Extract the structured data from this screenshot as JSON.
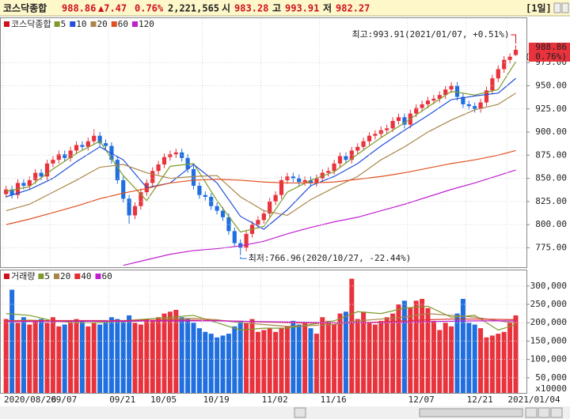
{
  "header": {
    "name": "코스닥종합",
    "price": "988.86",
    "change": "▲7.47",
    "change_pct": "0.76%",
    "volume": "2,221,565",
    "open_label": "시",
    "open": "983.28",
    "high_label": "고",
    "high": "993.91",
    "low_label": "저",
    "low": "982.27",
    "period": "[1일]"
  },
  "chart_data": [
    {
      "type": "candlestick",
      "legend_title": "코스닥종합",
      "categories": [
        "2020/08/26",
        null,
        null,
        null,
        null,
        null,
        null,
        null,
        "09/07",
        null,
        null,
        null,
        null,
        null,
        null,
        null,
        null,
        null,
        "09/21",
        null,
        null,
        null,
        null,
        null,
        null,
        "10/05",
        null,
        null,
        null,
        null,
        null,
        null,
        null,
        null,
        "10/19",
        null,
        null,
        null,
        null,
        null,
        null,
        null,
        null,
        null,
        "11/02",
        null,
        null,
        null,
        null,
        null,
        null,
        null,
        null,
        null,
        "11/16",
        null,
        null,
        null,
        null,
        null,
        null,
        null,
        null,
        null,
        null,
        null,
        null,
        null,
        null,
        "12/07",
        null,
        null,
        null,
        null,
        null,
        null,
        null,
        null,
        null,
        "12/21",
        null,
        null,
        null,
        null,
        null,
        null,
        "2021/01/04",
        null
      ],
      "open": [
        833,
        838,
        832,
        845,
        842,
        848,
        856,
        852,
        866,
        870,
        876,
        872,
        880,
        886,
        884,
        890,
        896,
        888,
        885,
        870,
        848,
        828,
        810,
        820,
        835,
        845,
        858,
        865,
        873,
        876,
        878,
        872,
        860,
        842,
        832,
        830,
        820,
        815,
        808,
        793,
        780,
        775,
        790,
        800,
        805,
        812,
        825,
        832,
        848,
        852,
        850,
        846,
        848,
        845,
        850,
        856,
        858,
        866,
        874,
        870,
        880,
        884,
        890,
        896,
        898,
        902,
        904,
        912,
        916,
        908,
        920,
        926,
        930,
        934,
        936,
        940,
        946,
        950,
        938,
        930,
        928,
        925,
        932,
        945,
        958,
        968,
        978,
        983.28
      ],
      "high": [
        842,
        842,
        849,
        849,
        852,
        860,
        860,
        870,
        874,
        880,
        880,
        884,
        890,
        890,
        894,
        903,
        900,
        892,
        889,
        874,
        852,
        832,
        824,
        839,
        849,
        862,
        869,
        877,
        880,
        882,
        882,
        876,
        864,
        846,
        836,
        834,
        824,
        819,
        812,
        797,
        784,
        794,
        804,
        809,
        816,
        829,
        836,
        852,
        856,
        856,
        854,
        852,
        852,
        854,
        860,
        862,
        870,
        878,
        878,
        884,
        888,
        894,
        900,
        902,
        906,
        908,
        916,
        920,
        920,
        924,
        930,
        934,
        938,
        940,
        944,
        950,
        954,
        954,
        942,
        934,
        932,
        936,
        949,
        962,
        972,
        982,
        985,
        993.91
      ],
      "low": [
        829,
        828,
        828,
        838,
        838,
        844,
        848,
        848,
        862,
        866,
        868,
        868,
        876,
        880,
        880,
        886,
        884,
        881,
        866,
        844,
        824,
        801,
        806,
        816,
        831,
        841,
        854,
        861,
        869,
        872,
        868,
        856,
        838,
        828,
        826,
        816,
        811,
        804,
        789,
        776,
        766.96,
        771,
        786,
        796,
        801,
        808,
        821,
        828,
        844,
        846,
        842,
        842,
        841,
        841,
        846,
        852,
        854,
        862,
        866,
        866,
        876,
        880,
        886,
        892,
        894,
        898,
        900,
        908,
        904,
        904,
        916,
        922,
        926,
        930,
        932,
        936,
        942,
        934,
        926,
        924,
        921,
        921,
        928,
        941,
        954,
        964,
        974,
        982.27
      ],
      "close": [
        838,
        832,
        845,
        842,
        848,
        856,
        852,
        866,
        870,
        876,
        872,
        880,
        886,
        884,
        890,
        896,
        888,
        885,
        870,
        848,
        828,
        810,
        820,
        835,
        845,
        858,
        865,
        873,
        876,
        878,
        872,
        860,
        842,
        832,
        830,
        820,
        815,
        808,
        793,
        780,
        775,
        790,
        800,
        805,
        812,
        825,
        832,
        848,
        852,
        850,
        846,
        848,
        845,
        850,
        856,
        858,
        866,
        874,
        870,
        880,
        884,
        890,
        896,
        898,
        902,
        904,
        912,
        916,
        908,
        920,
        926,
        930,
        934,
        936,
        940,
        946,
        950,
        938,
        930,
        928,
        925,
        932,
        945,
        958,
        968,
        978,
        981.39,
        988.86
      ],
      "up_color": "#e8323c",
      "down_color": "#1f6fe0",
      "ylim": [
        754,
        1023
      ],
      "yticks": [
        {
          "value": 775,
          "label": "775.00"
        },
        {
          "value": 800,
          "label": "800.00"
        },
        {
          "value": 825,
          "label": "825.00"
        },
        {
          "value": 850,
          "label": "850.00"
        },
        {
          "value": 875,
          "label": "875.00"
        },
        {
          "value": 900,
          "label": "900.00"
        },
        {
          "value": 925,
          "label": "925.00"
        },
        {
          "value": 950,
          "label": "950.00"
        },
        {
          "value": 975,
          "label": "975.00"
        }
      ],
      "grid": true,
      "ma": [
        {
          "name": "5",
          "color": "#7f9a2a",
          "x": [
            0,
            4,
            8,
            12,
            16,
            20,
            24,
            28,
            32,
            36,
            40,
            44,
            48,
            52,
            56,
            60,
            64,
            68,
            72,
            76,
            80,
            84,
            87
          ],
          "values": [
            836,
            841,
            860,
            877,
            890,
            853,
            826,
            863,
            866,
            826,
            792,
            798,
            835,
            848,
            857,
            876,
            894,
            910,
            927,
            944,
            940,
            946,
            976
          ]
        },
        {
          "name": "10",
          "color": "#2050d8",
          "x": [
            0,
            4,
            8,
            12,
            16,
            20,
            24,
            28,
            32,
            36,
            40,
            44,
            48,
            52,
            56,
            60,
            64,
            68,
            72,
            76,
            80,
            84,
            87
          ],
          "values": [
            830,
            838,
            850,
            868,
            884,
            870,
            840,
            845,
            865,
            845,
            809,
            795,
            816,
            842,
            852,
            866,
            885,
            902,
            918,
            935,
            939,
            942,
            958
          ]
        },
        {
          "name": "20",
          "color": "#a8864a",
          "x": [
            0,
            4,
            8,
            12,
            16,
            20,
            24,
            28,
            32,
            36,
            40,
            44,
            48,
            52,
            56,
            60,
            64,
            68,
            72,
            76,
            80,
            84,
            87
          ],
          "values": [
            815,
            822,
            835,
            848,
            862,
            865,
            856,
            850,
            852,
            853,
            830,
            815,
            810,
            827,
            840,
            852,
            870,
            884,
            900,
            913,
            924,
            930,
            942
          ]
        },
        {
          "name": "60",
          "color": "#e05020",
          "x": [
            0,
            4,
            8,
            12,
            16,
            20,
            24,
            28,
            32,
            36,
            40,
            44,
            48,
            52,
            56,
            60,
            64,
            68,
            72,
            76,
            80,
            84,
            87
          ],
          "values": [
            800,
            806,
            813,
            820,
            828,
            834,
            839,
            845,
            848,
            849,
            848,
            846,
            845,
            845,
            846,
            849,
            852,
            856,
            861,
            866,
            870,
            875,
            880
          ]
        },
        {
          "name": "120",
          "color": "#c020d0",
          "x": [
            0,
            4,
            8,
            12,
            16,
            20,
            24,
            28,
            32,
            36,
            40,
            44,
            48,
            52,
            56,
            60,
            64,
            68,
            72,
            76,
            80,
            84,
            87
          ],
          "values": [
            null,
            null,
            null,
            null,
            null,
            756,
            762,
            768,
            772,
            774,
            777,
            782,
            790,
            797,
            803,
            808,
            815,
            822,
            830,
            838,
            845,
            853,
            859
          ]
        }
      ],
      "high_annotation": "최고:993.91(2021/01/07, +0.51%)",
      "low_annotation": "최저:766.96(2020/10/27, -22.44%)",
      "last_price_label": "988.86",
      "last_change_label": "( 0.76%)"
    },
    {
      "type": "bar",
      "legend_title": "거래량",
      "values": [
        210000,
        290000,
        200000,
        215000,
        195000,
        205000,
        210000,
        200000,
        215000,
        190000,
        195000,
        200000,
        210000,
        205000,
        190000,
        200000,
        195000,
        205000,
        215000,
        210000,
        205000,
        220000,
        200000,
        195000,
        210000,
        205000,
        215000,
        225000,
        230000,
        235000,
        215000,
        210000,
        200000,
        185000,
        175000,
        170000,
        160000,
        165000,
        170000,
        190000,
        205000,
        200000,
        210000,
        175000,
        180000,
        185000,
        175000,
        185000,
        190000,
        205000,
        195000,
        200000,
        185000,
        170000,
        215000,
        205000,
        195000,
        225000,
        230000,
        320000,
        210000,
        230000,
        200000,
        195000,
        205000,
        215000,
        225000,
        250000,
        260000,
        240000,
        260000,
        265000,
        240000,
        205000,
        180000,
        200000,
        190000,
        225000,
        265000,
        200000,
        195000,
        185000,
        160000,
        165000,
        170000,
        175000,
        200000,
        220000
      ],
      "ylim": [
        8600,
        342700
      ],
      "yticks": [
        {
          "value": 50000,
          "label": "50,000"
        },
        {
          "value": 100000,
          "label": "100,000"
        },
        {
          "value": 150000,
          "label": "150,000"
        },
        {
          "value": 200000,
          "label": "200,000"
        },
        {
          "value": 250000,
          "label": "250,000"
        },
        {
          "value": 300000,
          "label": "300,000"
        }
      ],
      "unit_label": "x10000",
      "ma": [
        {
          "name": "5",
          "color": "#7f9a2a",
          "x": [
            0,
            4,
            8,
            12,
            16,
            20,
            24,
            28,
            32,
            36,
            40,
            44,
            48,
            52,
            56,
            60,
            64,
            68,
            72,
            76,
            80,
            84,
            87
          ],
          "values": [
            225000,
            220000,
            205000,
            200000,
            200000,
            205000,
            210000,
            215000,
            220000,
            200000,
            180000,
            185000,
            185000,
            195000,
            205000,
            230000,
            225000,
            240000,
            245000,
            215000,
            220000,
            180000,
            195000
          ]
        },
        {
          "name": "20",
          "color": "#a8864a",
          "x": [
            0,
            4,
            8,
            12,
            16,
            20,
            24,
            28,
            32,
            36,
            40,
            44,
            48,
            52,
            56,
            60,
            64,
            68,
            72,
            76,
            80,
            84,
            87
          ],
          "values": [
            205000,
            207000,
            205000,
            205000,
            203000,
            203000,
            205000,
            210000,
            212000,
            208000,
            200000,
            195000,
            190000,
            192000,
            195000,
            205000,
            210000,
            215000,
            225000,
            220000,
            215000,
            205000,
            200000
          ]
        },
        {
          "name": "40",
          "color": "#e03030",
          "x": [
            0,
            4,
            8,
            12,
            16,
            20,
            24,
            28,
            32,
            36,
            40,
            44,
            48,
            52,
            56,
            60,
            64,
            68,
            72,
            76,
            80,
            84,
            87
          ],
          "values": [
            205000,
            205000,
            206000,
            206000,
            206000,
            206000,
            207000,
            207000,
            207000,
            206000,
            204000,
            202000,
            200000,
            199000,
            199000,
            200000,
            202000,
            205000,
            208000,
            210000,
            210000,
            209000,
            208000
          ]
        },
        {
          "name": "60",
          "color": "#c020d0",
          "x": [
            0,
            4,
            8,
            12,
            16,
            20,
            24,
            28,
            32,
            36,
            40,
            44,
            48,
            52,
            56,
            60,
            64,
            68,
            72,
            76,
            80,
            84,
            87
          ],
          "values": [
            203000,
            203000,
            203000,
            204000,
            204000,
            204000,
            205000,
            205000,
            205000,
            205000,
            204000,
            203000,
            202000,
            201000,
            200000,
            200000,
            200000,
            201000,
            203000,
            204000,
            205000,
            205000,
            205000
          ]
        }
      ]
    }
  ]
}
